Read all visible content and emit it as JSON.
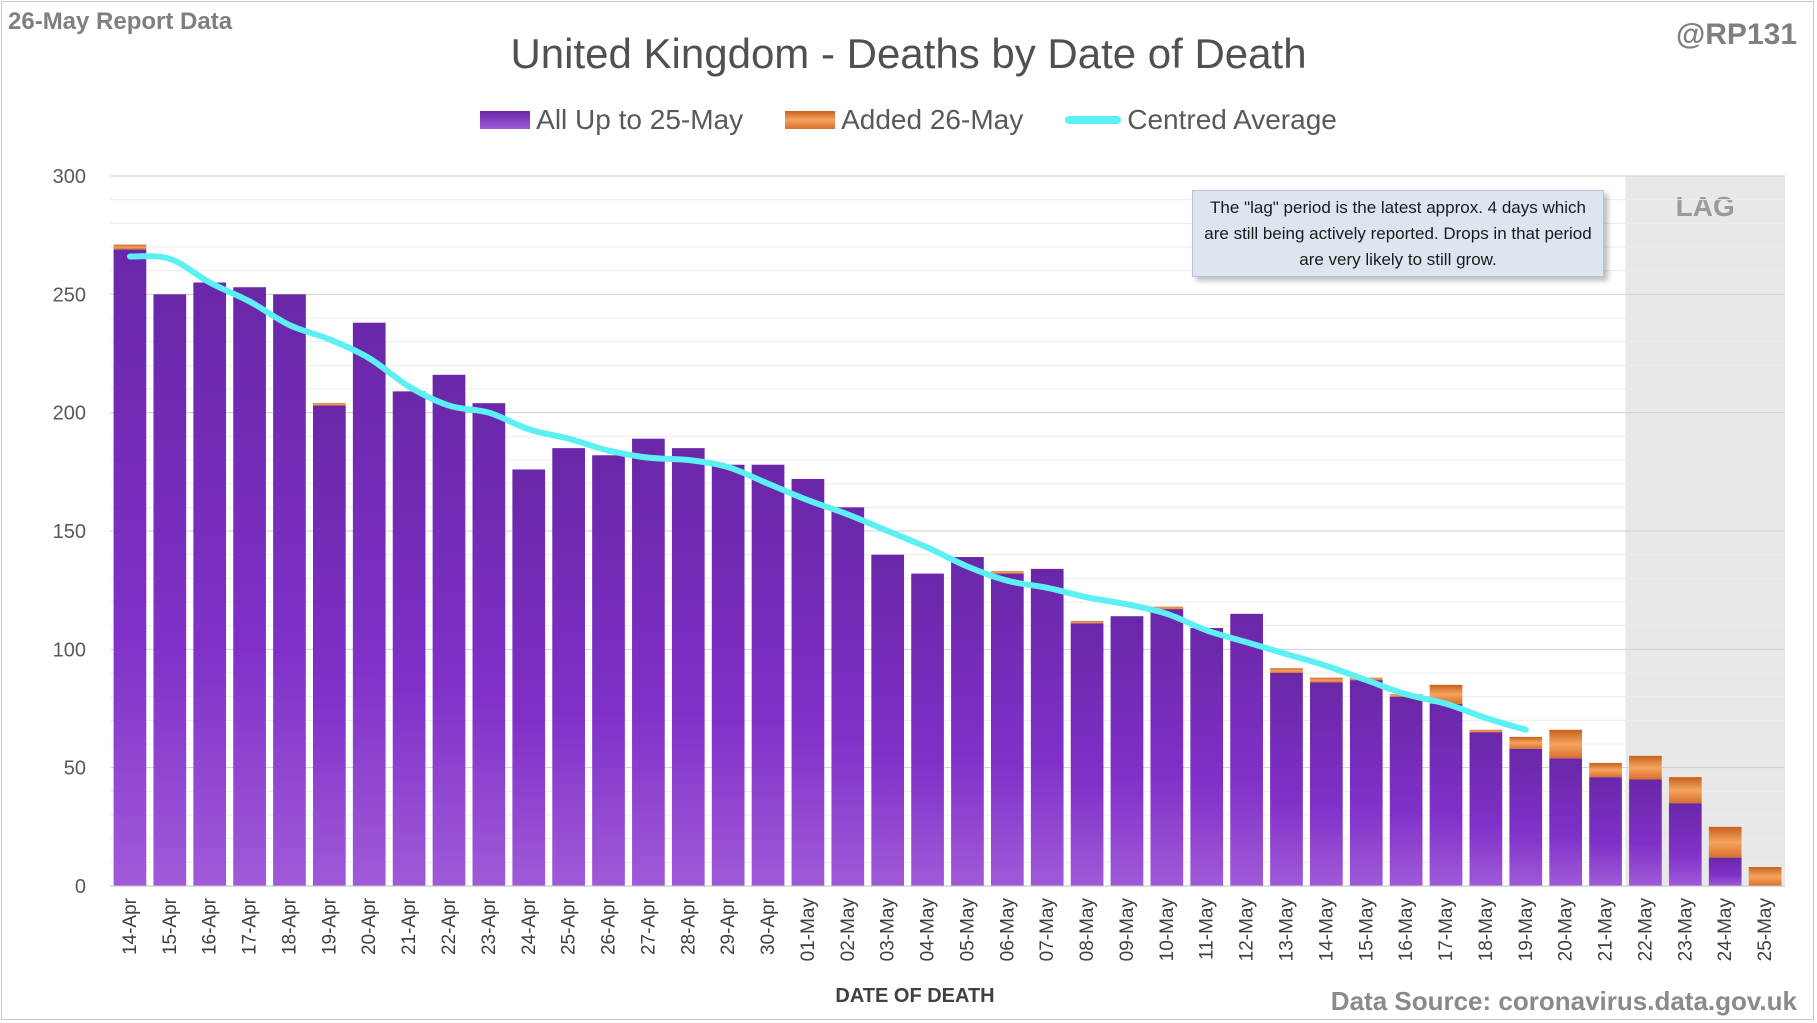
{
  "header": {
    "corner_label": "26-May Report Data",
    "author": "@RP131"
  },
  "footer": {
    "source": "Data Source: coronavirus.data.gov.uk"
  },
  "annotation": "The \"lag\" period is the latest approx. 4 days which are still being actively reported.  Drops in that period are very likely to still grow.",
  "colors": {
    "base_bar": "#7b2fc0",
    "added_bar": "#e0782c",
    "average_line": "#5cf0f5",
    "lag_shade": "#e8e8e8",
    "grid": "#d9d9d9",
    "text": "#595959"
  },
  "chart_data": {
    "type": "bar",
    "title": "United Kingdom - Deaths by Date of Death",
    "xlabel": "DATE OF DEATH",
    "ylabel": "",
    "ylim": [
      0,
      300
    ],
    "yticks": [
      0,
      50,
      100,
      150,
      200,
      250,
      300
    ],
    "grid": true,
    "legend_position": "top",
    "stacked": true,
    "lag_label": "LAG",
    "lag_categories": [
      "22-May",
      "23-May",
      "24-May",
      "25-May"
    ],
    "categories": [
      "14-Apr",
      "15-Apr",
      "16-Apr",
      "17-Apr",
      "18-Apr",
      "19-Apr",
      "20-Apr",
      "21-Apr",
      "22-Apr",
      "23-Apr",
      "24-Apr",
      "25-Apr",
      "26-Apr",
      "27-Apr",
      "28-Apr",
      "29-Apr",
      "30-Apr",
      "01-May",
      "02-May",
      "03-May",
      "04-May",
      "05-May",
      "06-May",
      "07-May",
      "08-May",
      "09-May",
      "10-May",
      "11-May",
      "12-May",
      "13-May",
      "14-May",
      "15-May",
      "16-May",
      "17-May",
      "18-May",
      "19-May",
      "20-May",
      "21-May",
      "22-May",
      "23-May",
      "24-May",
      "25-May"
    ],
    "series": [
      {
        "name": "All Up to 25-May",
        "values": [
          269,
          250,
          255,
          253,
          250,
          203,
          238,
          209,
          216,
          204,
          176,
          185,
          182,
          189,
          185,
          178,
          178,
          172,
          160,
          140,
          132,
          139,
          132,
          134,
          111,
          114,
          117,
          109,
          115,
          90,
          86,
          87,
          80,
          77,
          65,
          58,
          54,
          46,
          45,
          35,
          12,
          0
        ]
      },
      {
        "name": "Added 26-May",
        "values": [
          2,
          0,
          0,
          0,
          0,
          1,
          0,
          0,
          0,
          0,
          0,
          0,
          0,
          0,
          0,
          0,
          0,
          0,
          0,
          0,
          0,
          0,
          1,
          0,
          1,
          0,
          1,
          0,
          0,
          2,
          2,
          1,
          1,
          8,
          1,
          5,
          12,
          6,
          10,
          11,
          13,
          8
        ]
      },
      {
        "name": "Centred Average",
        "type": "line",
        "values": [
          266,
          265,
          255,
          247,
          237,
          231,
          223,
          211,
          203,
          200,
          193,
          189,
          184,
          181,
          180,
          177,
          170,
          163,
          157,
          150,
          143,
          135,
          129,
          126,
          122,
          119,
          115,
          108,
          103,
          98,
          93,
          87,
          81,
          77,
          71,
          66,
          null,
          null,
          null,
          null,
          null,
          null
        ]
      }
    ]
  }
}
